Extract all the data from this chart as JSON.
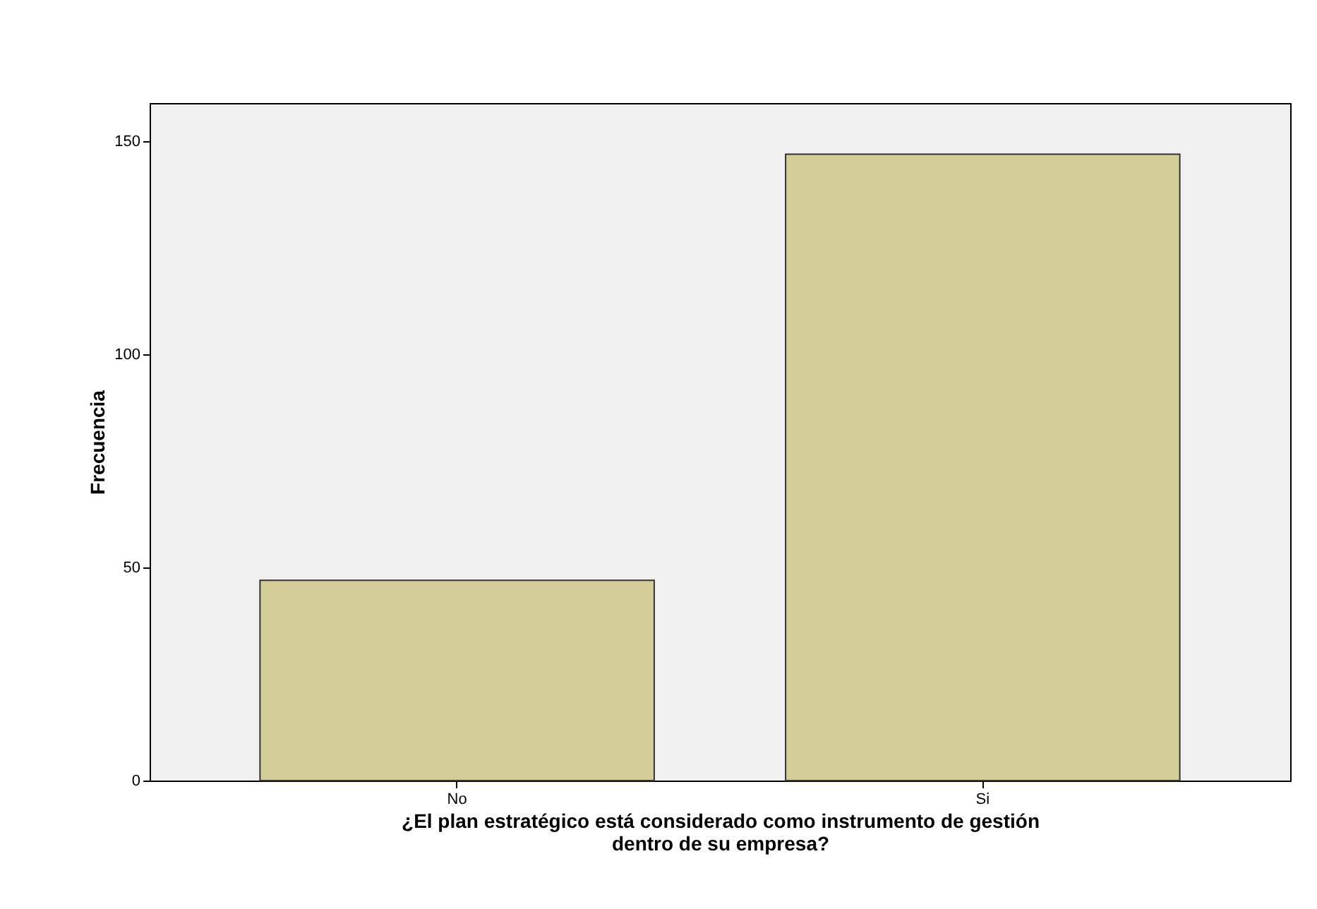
{
  "chart_data": {
    "type": "bar",
    "categories": [
      "No",
      "Si"
    ],
    "values": [
      47,
      147
    ],
    "color": "#d3ce97",
    "ylabel": "Frecuencia",
    "xlabel": "¿El plan estratégico está considerado como instrumento de gestión\ndentro de su empresa?",
    "ylim": [
      0,
      159
    ],
    "yticks": [
      0,
      50,
      100,
      150
    ],
    "grid": false
  }
}
